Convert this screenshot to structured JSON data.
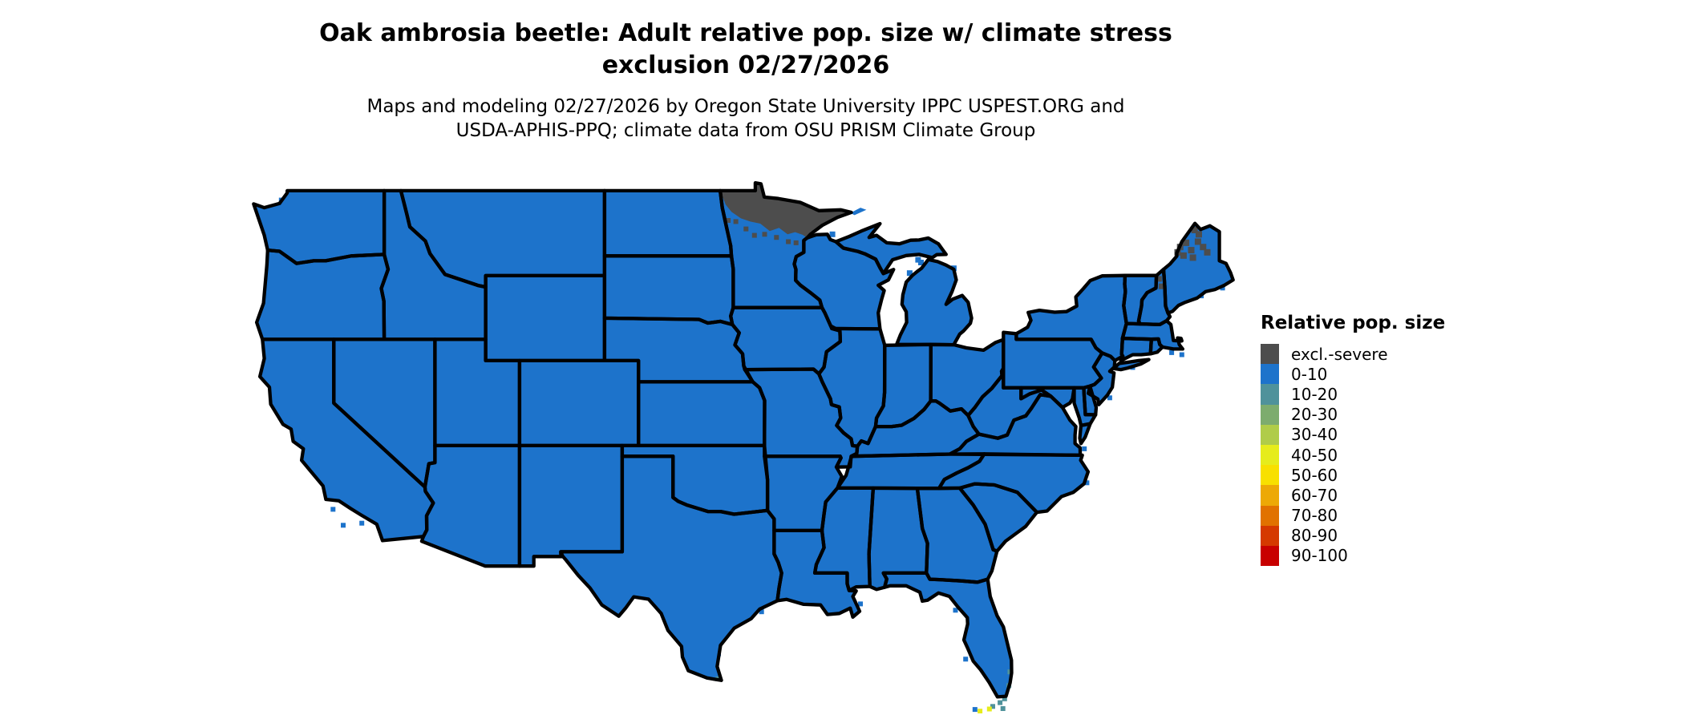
{
  "canvas": {
    "background": "#ffffff",
    "text_color": "#000000"
  },
  "header": {
    "title_line1": "Oak ambrosia beetle: Adult relative pop. size w/ climate stress",
    "title_line2": "exclusion 02/27/2026",
    "subtitle_line1": "Maps and modeling 02/27/2026 by Oregon State University IPPC USPEST.ORG and",
    "subtitle_line2": "USDA-APHIS-PPQ; climate data from OSU PRISM Climate Group"
  },
  "legend": {
    "title": "Relative pop. size",
    "items": [
      {
        "label": "excl.-severe",
        "color": "#4d4d4d"
      },
      {
        "label": "0-10",
        "color": "#1d73cb"
      },
      {
        "label": "10-20",
        "color": "#4f929b"
      },
      {
        "label": "20-30",
        "color": "#7dac6e"
      },
      {
        "label": "30-40",
        "color": "#b0cc49"
      },
      {
        "label": "40-50",
        "color": "#e6ec1c"
      },
      {
        "label": "50-60",
        "color": "#f8e000"
      },
      {
        "label": "60-70",
        "color": "#eda906"
      },
      {
        "label": "70-80",
        "color": "#e17200"
      },
      {
        "label": "80-90",
        "color": "#d53900"
      },
      {
        "label": "90-100",
        "color": "#c80000"
      }
    ]
  },
  "map": {
    "description": "Contiguous United States choropleth of adult relative population size",
    "border_color": "#000000",
    "base_category": "0-10",
    "regions": [
      {
        "name": "contiguous-us-states",
        "category": "0-10"
      },
      {
        "name": "northern-minnesota",
        "category": "excl.-severe"
      },
      {
        "name": "minnesota-speckles",
        "category": "excl.-severe"
      },
      {
        "name": "northern-maine-patches",
        "category": "excl.-severe"
      },
      {
        "name": "white-mountains-nh",
        "category": "excl.-severe"
      },
      {
        "name": "great-lakes-islands",
        "category": "0-10"
      },
      {
        "name": "coastal-fringe",
        "category": "0-10"
      },
      {
        "name": "miami-coast",
        "category": "10-20"
      },
      {
        "name": "florida-keys-teal",
        "category": "10-20"
      },
      {
        "name": "florida-keys-yellow",
        "category": "40-50"
      },
      {
        "name": "south-texas-tip",
        "category": "10-20"
      }
    ]
  }
}
